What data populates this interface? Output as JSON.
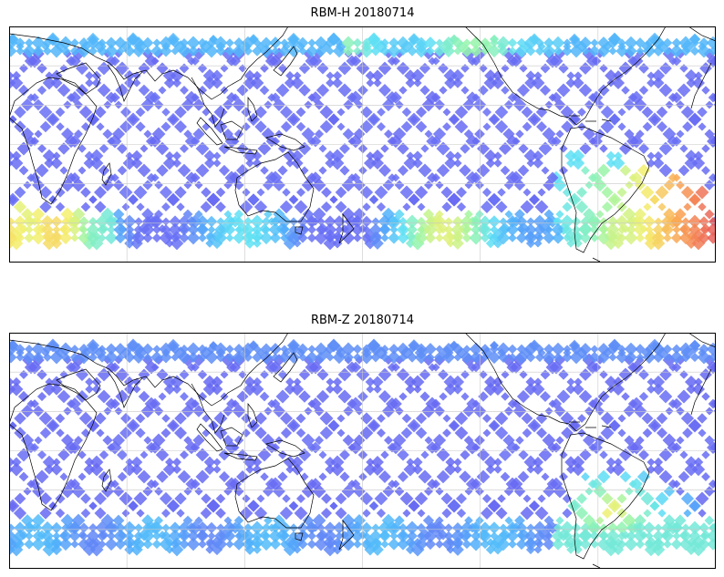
{
  "figure": {
    "panels": [
      {
        "title": "RBM-H 20180714",
        "field": "RBM-H",
        "date": "20180714"
      },
      {
        "title": "RBM-Z 20180714",
        "field": "RBM-Z",
        "date": "20180714"
      }
    ],
    "projection": "PlateCarree, centered on the Pacific (lon0 = 150)",
    "extent": {
      "lon": [
        -30,
        330
      ],
      "lat": [
        -60,
        60
      ]
    },
    "colormap": "jet (blue low to red high), semi-transparent",
    "background": "white",
    "gridlines": true,
    "coastlines": true
  }
}
